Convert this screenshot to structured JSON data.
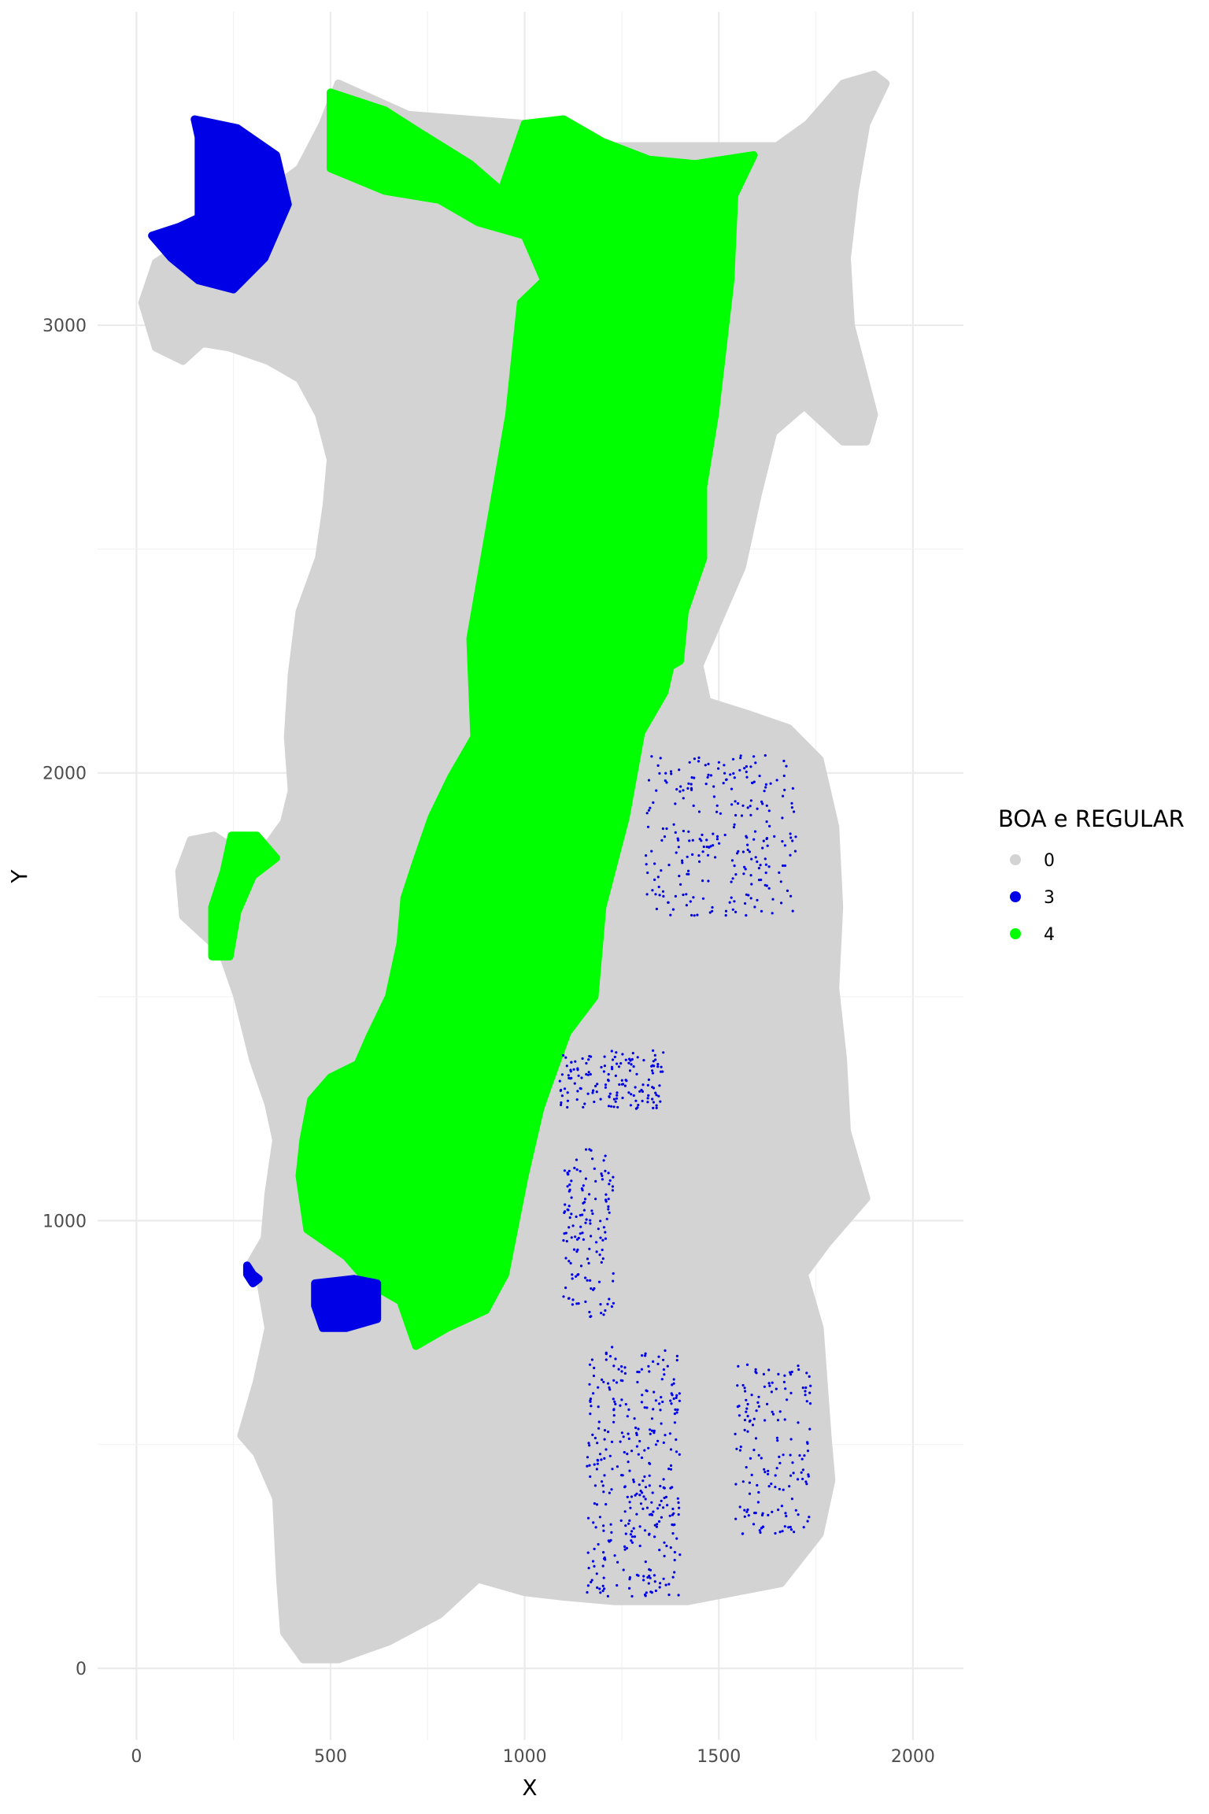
{
  "chart_data": {
    "type": "scatter",
    "title": "",
    "xlabel": "X",
    "ylabel": "Y",
    "xlim": [
      -100,
      2130
    ],
    "ylim": [
      -160,
      3700
    ],
    "x_ticks": [
      0,
      500,
      1000,
      1500,
      2000
    ],
    "x_tick_labels": [
      "0",
      "500",
      "1000",
      "1500",
      "2000"
    ],
    "y_ticks": [
      0,
      1000,
      2000,
      3000
    ],
    "y_tick_labels": [
      "0",
      "1000",
      "2000",
      "3000"
    ],
    "grid": true,
    "legend": {
      "title": "BOA e REGULAR",
      "placement": "right",
      "entries": [
        {
          "label": "0",
          "color": "#d3d3d3"
        },
        {
          "label": "3",
          "color": "#0000e6"
        },
        {
          "label": "4",
          "color": "#00ff00"
        }
      ]
    },
    "regions": [
      {
        "class": "0",
        "color": "#d3d3d3",
        "polygon": [
          [
            520,
            3540
          ],
          [
            700,
            3470
          ],
          [
            1000,
            3450
          ],
          [
            1200,
            3400
          ],
          [
            1550,
            3400
          ],
          [
            1650,
            3400
          ],
          [
            1730,
            3450
          ],
          [
            1820,
            3540
          ],
          [
            1900,
            3560
          ],
          [
            1930,
            3540
          ],
          [
            1880,
            3450
          ],
          [
            1850,
            3300
          ],
          [
            1830,
            3150
          ],
          [
            1840,
            3000
          ],
          [
            1870,
            2900
          ],
          [
            1900,
            2800
          ],
          [
            1880,
            2740
          ],
          [
            1820,
            2740
          ],
          [
            1720,
            2820
          ],
          [
            1640,
            2760
          ],
          [
            1600,
            2620
          ],
          [
            1560,
            2460
          ],
          [
            1500,
            2340
          ],
          [
            1450,
            2240
          ],
          [
            1470,
            2160
          ],
          [
            1580,
            2130
          ],
          [
            1680,
            2100
          ],
          [
            1760,
            2030
          ],
          [
            1800,
            1880
          ],
          [
            1810,
            1700
          ],
          [
            1800,
            1520
          ],
          [
            1820,
            1360
          ],
          [
            1830,
            1200
          ],
          [
            1880,
            1050
          ],
          [
            1780,
            950
          ],
          [
            1720,
            880
          ],
          [
            1760,
            760
          ],
          [
            1780,
            520
          ],
          [
            1790,
            420
          ],
          [
            1760,
            300
          ],
          [
            1660,
            190
          ],
          [
            1420,
            150
          ],
          [
            1230,
            150
          ],
          [
            1100,
            160
          ],
          [
            1000,
            170
          ],
          [
            880,
            200
          ],
          [
            780,
            120
          ],
          [
            650,
            60
          ],
          [
            520,
            20
          ],
          [
            430,
            20
          ],
          [
            380,
            80
          ],
          [
            370,
            200
          ],
          [
            360,
            380
          ],
          [
            310,
            480
          ],
          [
            270,
            520
          ],
          [
            310,
            640
          ],
          [
            340,
            760
          ],
          [
            320,
            860
          ],
          [
            290,
            900
          ],
          [
            330,
            960
          ],
          [
            340,
            1060
          ],
          [
            360,
            1180
          ],
          [
            340,
            1260
          ],
          [
            300,
            1360
          ],
          [
            260,
            1500
          ],
          [
            220,
            1600
          ],
          [
            170,
            1640
          ],
          [
            120,
            1680
          ],
          [
            110,
            1780
          ],
          [
            140,
            1850
          ],
          [
            200,
            1860
          ],
          [
            270,
            1820
          ],
          [
            330,
            1830
          ],
          [
            380,
            1890
          ],
          [
            400,
            1960
          ],
          [
            390,
            2080
          ],
          [
            400,
            2220
          ],
          [
            420,
            2360
          ],
          [
            470,
            2480
          ],
          [
            490,
            2600
          ],
          [
            500,
            2700
          ],
          [
            470,
            2800
          ],
          [
            420,
            2880
          ],
          [
            340,
            2920
          ],
          [
            240,
            2950
          ],
          [
            170,
            2960
          ],
          [
            120,
            2920
          ],
          [
            50,
            2950
          ],
          [
            15,
            3050
          ],
          [
            50,
            3140
          ],
          [
            120,
            3180
          ],
          [
            190,
            3220
          ],
          [
            280,
            3260
          ],
          [
            340,
            3300
          ],
          [
            420,
            3350
          ],
          [
            480,
            3450
          ]
        ]
      },
      {
        "class": "4",
        "color": "#00ff00",
        "polygon": [
          [
            500,
            3520
          ],
          [
            640,
            3480
          ],
          [
            730,
            3430
          ],
          [
            860,
            3360
          ],
          [
            940,
            3300
          ],
          [
            1000,
            3450
          ],
          [
            1100,
            3460
          ],
          [
            1200,
            3410
          ],
          [
            1320,
            3370
          ],
          [
            1440,
            3360
          ],
          [
            1590,
            3380
          ],
          [
            1540,
            3290
          ],
          [
            1530,
            3100
          ],
          [
            1510,
            2950
          ],
          [
            1490,
            2800
          ],
          [
            1460,
            2640
          ],
          [
            1460,
            2480
          ],
          [
            1400,
            2330
          ],
          [
            1360,
            2180
          ],
          [
            1300,
            2090
          ],
          [
            1260,
            1900
          ],
          [
            1200,
            1700
          ],
          [
            1180,
            1500
          ],
          [
            1110,
            1420
          ],
          [
            1060,
            1300
          ],
          [
            1040,
            1250
          ],
          [
            1000,
            1100
          ],
          [
            950,
            880
          ],
          [
            900,
            800
          ],
          [
            800,
            760
          ],
          [
            720,
            720
          ],
          [
            680,
            820
          ],
          [
            600,
            860
          ],
          [
            540,
            920
          ],
          [
            440,
            980
          ],
          [
            420,
            1100
          ],
          [
            430,
            1180
          ],
          [
            450,
            1270
          ],
          [
            500,
            1320
          ],
          [
            570,
            1350
          ],
          [
            600,
            1410
          ],
          [
            650,
            1500
          ],
          [
            680,
            1620
          ],
          [
            690,
            1720
          ],
          [
            720,
            1800
          ],
          [
            760,
            1900
          ],
          [
            810,
            1990
          ],
          [
            870,
            2080
          ],
          [
            860,
            2300
          ],
          [
            900,
            2500
          ],
          [
            960,
            2800
          ],
          [
            990,
            3050
          ],
          [
            1050,
            3100
          ],
          [
            1000,
            3200
          ],
          [
            880,
            3230
          ],
          [
            780,
            3280
          ],
          [
            640,
            3300
          ],
          [
            500,
            3350
          ]
        ]
      },
      {
        "class": "4",
        "color": "#00ff00",
        "polygon": [
          [
            1050,
            2500
          ],
          [
            1130,
            2300
          ],
          [
            1300,
            2200
          ],
          [
            1400,
            2250
          ],
          [
            1420,
            2430
          ],
          [
            1380,
            2580
          ],
          [
            1200,
            2620
          ],
          [
            1080,
            2640
          ]
        ]
      },
      {
        "class": "4",
        "color": "#00ff00",
        "polygon": [
          [
            245,
            1860
          ],
          [
            310,
            1860
          ],
          [
            360,
            1810
          ],
          [
            300,
            1770
          ],
          [
            260,
            1690
          ],
          [
            240,
            1590
          ],
          [
            195,
            1590
          ],
          [
            195,
            1700
          ],
          [
            225,
            1780
          ]
        ]
      },
      {
        "class": "3",
        "color": "#0000e6",
        "polygon": [
          [
            150,
            3460
          ],
          [
            260,
            3440
          ],
          [
            360,
            3380
          ],
          [
            390,
            3270
          ],
          [
            330,
            3150
          ],
          [
            250,
            3080
          ],
          [
            160,
            3100
          ],
          [
            90,
            3150
          ],
          [
            40,
            3200
          ],
          [
            110,
            3220
          ],
          [
            160,
            3240
          ],
          [
            160,
            3320
          ],
          [
            160,
            3420
          ]
        ]
      },
      {
        "class": "3",
        "color": "#0000e6",
        "polygon": [
          [
            460,
            860
          ],
          [
            560,
            870
          ],
          [
            620,
            860
          ],
          [
            620,
            780
          ],
          [
            540,
            760
          ],
          [
            480,
            760
          ],
          [
            460,
            810
          ]
        ]
      },
      {
        "class": "3",
        "color": "#0000e6",
        "polygon": [
          [
            285,
            900
          ],
          [
            300,
            880
          ],
          [
            315,
            870
          ],
          [
            300,
            860
          ],
          [
            285,
            880
          ]
        ]
      }
    ],
    "scatter_regions": [
      {
        "class": "3",
        "color": "#0000e6",
        "x_range": [
          1310,
          1700
        ],
        "y_range": [
          1680,
          2040
        ],
        "count": 260
      },
      {
        "class": "3",
        "color": "#0000e6",
        "x_range": [
          1090,
          1360
        ],
        "y_range": [
          1250,
          1380
        ],
        "count": 150
      },
      {
        "class": "3",
        "color": "#0000e6",
        "x_range": [
          1160,
          1400
        ],
        "y_range": [
          160,
          720
        ],
        "count": 340
      },
      {
        "class": "3",
        "color": "#0000e6",
        "x_range": [
          1540,
          1740
        ],
        "y_range": [
          300,
          680
        ],
        "count": 160
      },
      {
        "class": "3",
        "color": "#0000e6",
        "x_range": [
          1100,
          1230
        ],
        "y_range": [
          780,
          1160
        ],
        "count": 140
      }
    ]
  }
}
